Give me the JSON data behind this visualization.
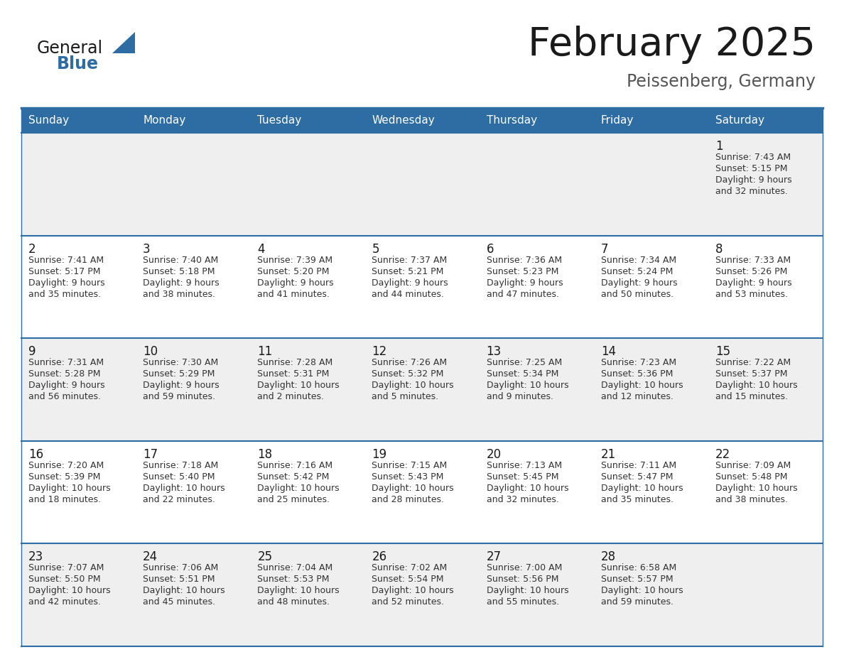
{
  "title": "February 2025",
  "subtitle": "Peissenberg, Germany",
  "header_color": "#2E6DA4",
  "header_text_color": "#FFFFFF",
  "bg_color_odd": "#EFEFEF",
  "bg_color_even": "#FFFFFF",
  "line_color": "#2E6DA4",
  "text_color": "#333333",
  "days_of_week": [
    "Sunday",
    "Monday",
    "Tuesday",
    "Wednesday",
    "Thursday",
    "Friday",
    "Saturday"
  ],
  "calendar": [
    [
      null,
      null,
      null,
      null,
      null,
      null,
      {
        "day": "1",
        "sunrise": "7:43 AM",
        "sunset": "5:15 PM",
        "daylight": "9 hours",
        "daylight2": "and 32 minutes."
      }
    ],
    [
      {
        "day": "2",
        "sunrise": "7:41 AM",
        "sunset": "5:17 PM",
        "daylight": "9 hours",
        "daylight2": "and 35 minutes."
      },
      {
        "day": "3",
        "sunrise": "7:40 AM",
        "sunset": "5:18 PM",
        "daylight": "9 hours",
        "daylight2": "and 38 minutes."
      },
      {
        "day": "4",
        "sunrise": "7:39 AM",
        "sunset": "5:20 PM",
        "daylight": "9 hours",
        "daylight2": "and 41 minutes."
      },
      {
        "day": "5",
        "sunrise": "7:37 AM",
        "sunset": "5:21 PM",
        "daylight": "9 hours",
        "daylight2": "and 44 minutes."
      },
      {
        "day": "6",
        "sunrise": "7:36 AM",
        "sunset": "5:23 PM",
        "daylight": "9 hours",
        "daylight2": "and 47 minutes."
      },
      {
        "day": "7",
        "sunrise": "7:34 AM",
        "sunset": "5:24 PM",
        "daylight": "9 hours",
        "daylight2": "and 50 minutes."
      },
      {
        "day": "8",
        "sunrise": "7:33 AM",
        "sunset": "5:26 PM",
        "daylight": "9 hours",
        "daylight2": "and 53 minutes."
      }
    ],
    [
      {
        "day": "9",
        "sunrise": "7:31 AM",
        "sunset": "5:28 PM",
        "daylight": "9 hours",
        "daylight2": "and 56 minutes."
      },
      {
        "day": "10",
        "sunrise": "7:30 AM",
        "sunset": "5:29 PM",
        "daylight": "9 hours",
        "daylight2": "and 59 minutes."
      },
      {
        "day": "11",
        "sunrise": "7:28 AM",
        "sunset": "5:31 PM",
        "daylight": "10 hours",
        "daylight2": "and 2 minutes."
      },
      {
        "day": "12",
        "sunrise": "7:26 AM",
        "sunset": "5:32 PM",
        "daylight": "10 hours",
        "daylight2": "and 5 minutes."
      },
      {
        "day": "13",
        "sunrise": "7:25 AM",
        "sunset": "5:34 PM",
        "daylight": "10 hours",
        "daylight2": "and 9 minutes."
      },
      {
        "day": "14",
        "sunrise": "7:23 AM",
        "sunset": "5:36 PM",
        "daylight": "10 hours",
        "daylight2": "and 12 minutes."
      },
      {
        "day": "15",
        "sunrise": "7:22 AM",
        "sunset": "5:37 PM",
        "daylight": "10 hours",
        "daylight2": "and 15 minutes."
      }
    ],
    [
      {
        "day": "16",
        "sunrise": "7:20 AM",
        "sunset": "5:39 PM",
        "daylight": "10 hours",
        "daylight2": "and 18 minutes."
      },
      {
        "day": "17",
        "sunrise": "7:18 AM",
        "sunset": "5:40 PM",
        "daylight": "10 hours",
        "daylight2": "and 22 minutes."
      },
      {
        "day": "18",
        "sunrise": "7:16 AM",
        "sunset": "5:42 PM",
        "daylight": "10 hours",
        "daylight2": "and 25 minutes."
      },
      {
        "day": "19",
        "sunrise": "7:15 AM",
        "sunset": "5:43 PM",
        "daylight": "10 hours",
        "daylight2": "and 28 minutes."
      },
      {
        "day": "20",
        "sunrise": "7:13 AM",
        "sunset": "5:45 PM",
        "daylight": "10 hours",
        "daylight2": "and 32 minutes."
      },
      {
        "day": "21",
        "sunrise": "7:11 AM",
        "sunset": "5:47 PM",
        "daylight": "10 hours",
        "daylight2": "and 35 minutes."
      },
      {
        "day": "22",
        "sunrise": "7:09 AM",
        "sunset": "5:48 PM",
        "daylight": "10 hours",
        "daylight2": "and 38 minutes."
      }
    ],
    [
      {
        "day": "23",
        "sunrise": "7:07 AM",
        "sunset": "5:50 PM",
        "daylight": "10 hours",
        "daylight2": "and 42 minutes."
      },
      {
        "day": "24",
        "sunrise": "7:06 AM",
        "sunset": "5:51 PM",
        "daylight": "10 hours",
        "daylight2": "and 45 minutes."
      },
      {
        "day": "25",
        "sunrise": "7:04 AM",
        "sunset": "5:53 PM",
        "daylight": "10 hours",
        "daylight2": "and 48 minutes."
      },
      {
        "day": "26",
        "sunrise": "7:02 AM",
        "sunset": "5:54 PM",
        "daylight": "10 hours",
        "daylight2": "and 52 minutes."
      },
      {
        "day": "27",
        "sunrise": "7:00 AM",
        "sunset": "5:56 PM",
        "daylight": "10 hours",
        "daylight2": "and 55 minutes."
      },
      {
        "day": "28",
        "sunrise": "6:58 AM",
        "sunset": "5:57 PM",
        "daylight": "10 hours",
        "daylight2": "and 59 minutes."
      },
      null
    ]
  ]
}
